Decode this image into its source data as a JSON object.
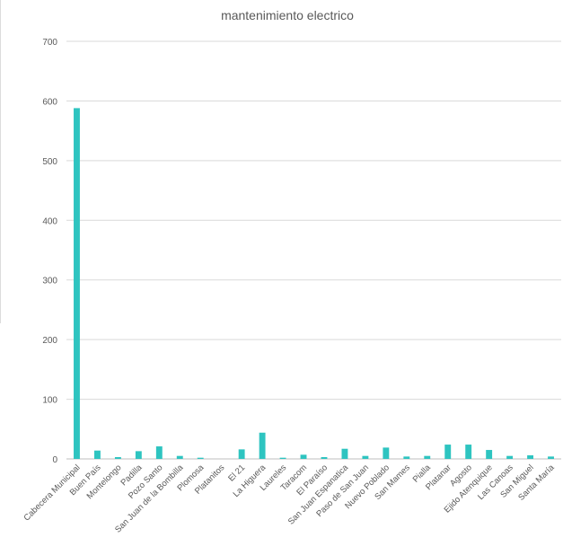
{
  "chart_data": {
    "type": "bar",
    "title": "mantenimiento electrico",
    "xlabel": "",
    "ylabel": "",
    "ylim": [
      0,
      700
    ],
    "yticks": [
      0,
      100,
      200,
      300,
      400,
      500,
      600,
      700
    ],
    "grid": true,
    "legend": "none",
    "bar_color": "#2ec4c0",
    "categories": [
      "Cabecera Municipal",
      "Buen País",
      "Montelongo",
      "Padilla",
      "Pozo Santo",
      "San Juan de la Bombilla",
      "Plomosa",
      "Platanitos",
      "El 21",
      "La Higuera",
      "Laureles",
      "Taracom",
      "El Paraíso",
      "San Juan Espanatica",
      "Paso de San Juan",
      "Nuevo Poblado",
      "San Mames",
      "Pialla",
      "Platanar",
      "Agosto",
      "Ejido Atenquique",
      "Las Canoas",
      "San Miguel",
      "Santa María"
    ],
    "values": [
      588,
      14,
      3,
      13,
      21,
      5,
      2,
      0,
      16,
      44,
      2,
      7,
      3,
      17,
      5,
      19,
      4,
      5,
      24,
      24,
      15,
      5,
      6,
      4
    ]
  }
}
